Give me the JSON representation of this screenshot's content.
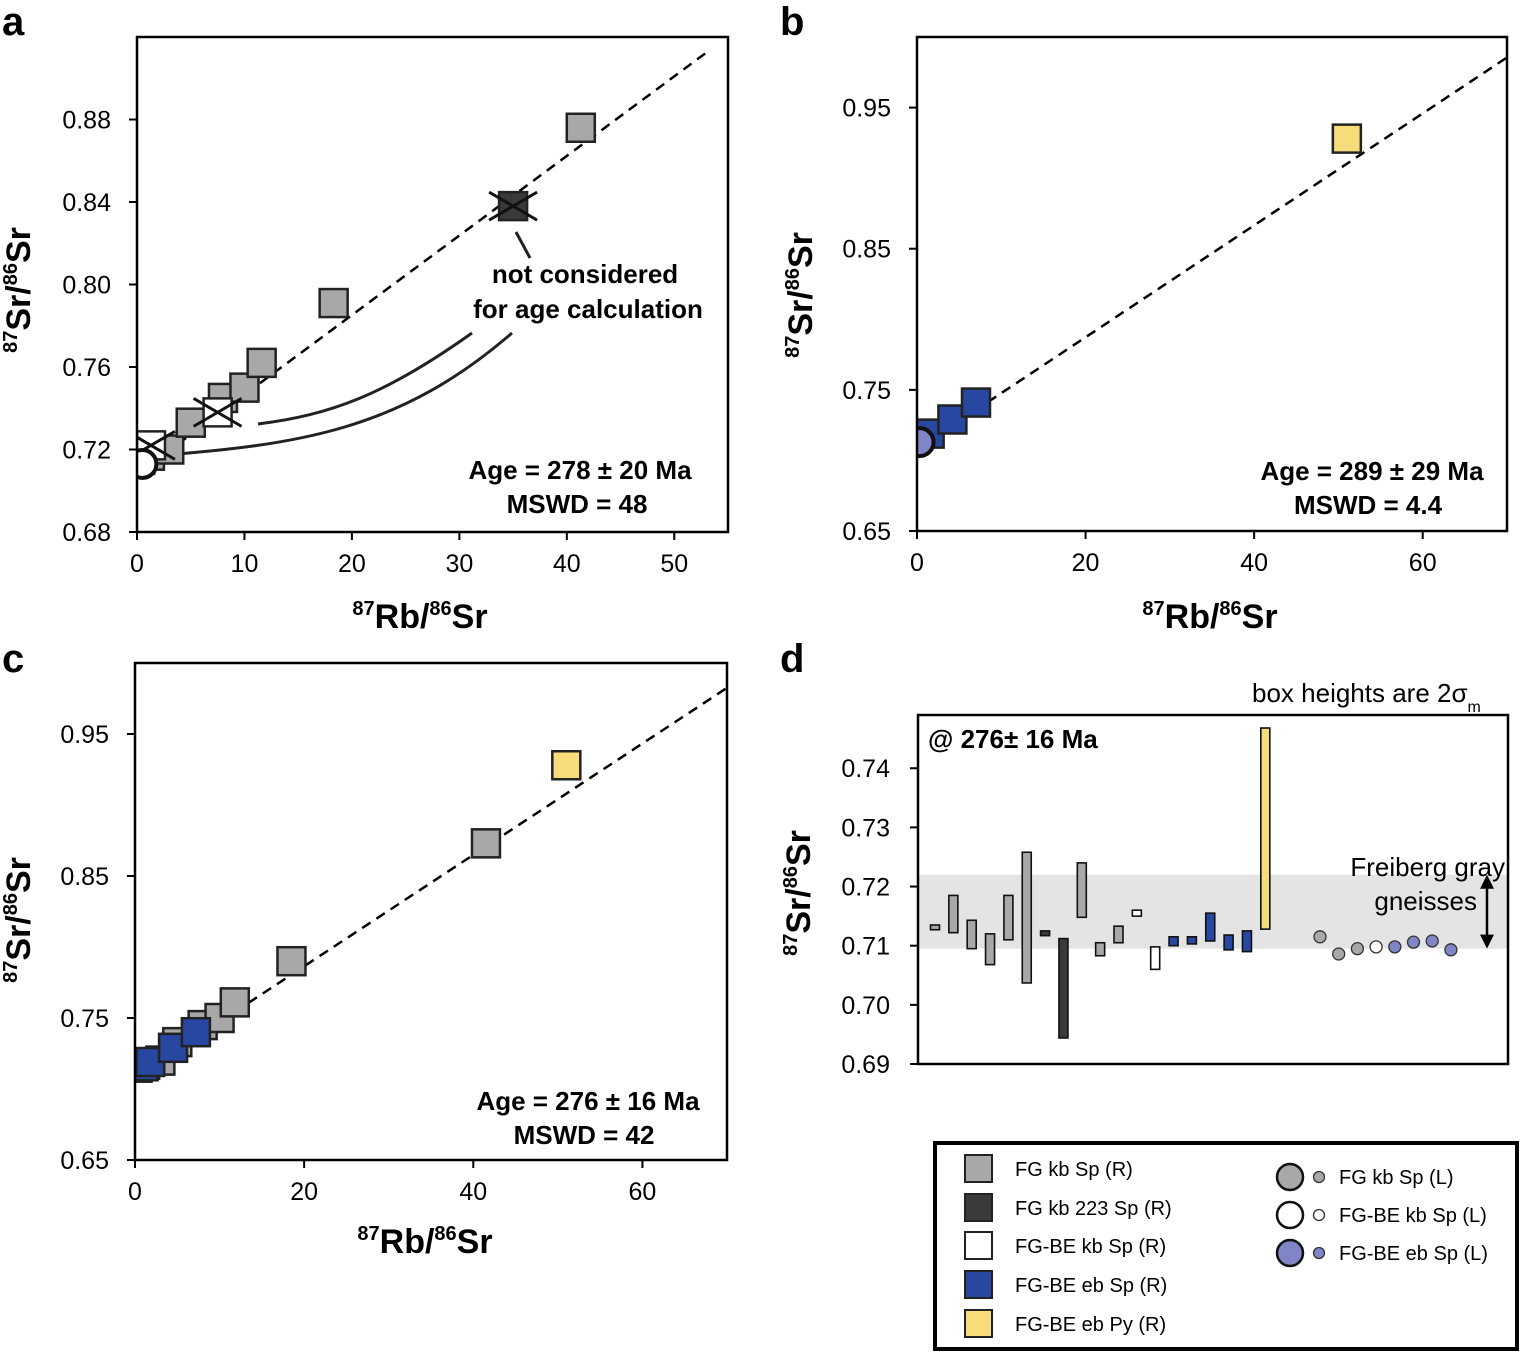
{
  "colors": {
    "fg_kb_sp_r": "#a8a8a8",
    "fg_kb_223_sp_r": "#3a3a3a",
    "fgbe_kb_sp_r": "#ffffff",
    "fgbe_eb_sp_r": "#2747a0",
    "fgbe_eb_py_r": "#f6dc7a",
    "fg_kb_sp_l": "#a8a8a8",
    "fgbe_kb_sp_l": "#ffffff",
    "fgbe_eb_sp_l": "#7f85c7",
    "band": "#e4e4e4"
  },
  "chart_data": [
    {
      "panel": "a",
      "type": "scatter",
      "xlabel": {
        "sup1": "87",
        "base1": "Rb/",
        "sup2": "86",
        "base2": "Sr"
      },
      "ylabel": {
        "sup1": "87",
        "base1": "Sr/",
        "sup2": "86",
        "base2": "Sr"
      },
      "xlim": [
        0,
        55
      ],
      "ylim": [
        0.68,
        0.92
      ],
      "xticks": [
        0,
        10,
        20,
        30,
        40,
        50
      ],
      "yticks": [
        0.68,
        0.72,
        0.76,
        0.8,
        0.84,
        0.88
      ],
      "ytick_labels": [
        "0.68",
        "0.72",
        "0.76",
        "0.80",
        "0.84",
        "0.88"
      ],
      "regression": {
        "x": [
          0,
          53
        ],
        "y": [
          0.708,
          0.9125
        ]
      },
      "points": [
        {
          "x": 0.3,
          "y": 0.715,
          "group": "fg_kb_sp_r"
        },
        {
          "x": 1.2,
          "y": 0.717,
          "group": "fg_kb_sp_r"
        },
        {
          "x": 3.0,
          "y": 0.72,
          "group": "fg_kb_sp_r"
        },
        {
          "x": 5.0,
          "y": 0.733,
          "group": "fg_kb_sp_r"
        },
        {
          "x": 8.0,
          "y": 0.745,
          "group": "fg_kb_sp_r"
        },
        {
          "x": 10.0,
          "y": 0.75,
          "group": "fg_kb_sp_r"
        },
        {
          "x": 11.6,
          "y": 0.762,
          "group": "fg_kb_sp_r"
        },
        {
          "x": 18.3,
          "y": 0.791,
          "group": "fg_kb_sp_r"
        },
        {
          "x": 41.3,
          "y": 0.876,
          "group": "fg_kb_sp_r"
        },
        {
          "x": 35.0,
          "y": 0.838,
          "group": "fg_kb_223_sp_r",
          "excluded": true
        },
        {
          "x": 7.5,
          "y": 0.738,
          "group": "fgbe_kb_sp_r",
          "excluded": true
        },
        {
          "x": 1.3,
          "y": 0.722,
          "group": "fgbe_kb_sp_r",
          "excluded": true
        },
        {
          "x": 0.5,
          "y": 0.713,
          "group": "fgbe_kb_sp_l"
        }
      ],
      "annotation": {
        "line1": "not considered",
        "line2": "for age calculation"
      },
      "age_text": "Age = 278 ± 20 Ma",
      "mswd_text": "MSWD = 48"
    },
    {
      "panel": "b",
      "type": "scatter",
      "xlabel": {
        "sup1": "87",
        "base1": "Rb/",
        "sup2": "86",
        "base2": "Sr"
      },
      "ylabel": {
        "sup1": "87",
        "base1": "Sr/",
        "sup2": "86",
        "base2": "Sr"
      },
      "xlim": [
        0,
        70
      ],
      "ylim": [
        0.65,
        1.0
      ],
      "xticks": [
        0,
        20,
        40,
        60
      ],
      "yticks": [
        0.65,
        0.75,
        0.85,
        0.95
      ],
      "ytick_labels": [
        "0.65",
        "0.75",
        "0.85",
        "0.95"
      ],
      "regression": {
        "x": [
          0,
          70
        ],
        "y": [
          0.708,
          0.9855
        ]
      },
      "points": [
        {
          "x": 1.5,
          "y": 0.719,
          "group": "fgbe_eb_sp_r"
        },
        {
          "x": 4.2,
          "y": 0.729,
          "group": "fgbe_eb_sp_r"
        },
        {
          "x": 7.0,
          "y": 0.741,
          "group": "fgbe_eb_sp_r"
        },
        {
          "x": 51.0,
          "y": 0.928,
          "group": "fgbe_eb_py_r"
        },
        {
          "x": 0.3,
          "y": 0.713,
          "group": "fgbe_eb_sp_l"
        }
      ],
      "age_text": "Age = 289 ± 29 Ma",
      "mswd_text": "MSWD = 4.4"
    },
    {
      "panel": "c",
      "type": "scatter",
      "xlabel": {
        "sup1": "87",
        "base1": "Rb/",
        "sup2": "86",
        "base2": "Sr"
      },
      "ylabel": {
        "sup1": "87",
        "base1": "Sr/",
        "sup2": "86",
        "base2": "Sr"
      },
      "xlim": [
        0,
        70
      ],
      "ylim": [
        0.65,
        1.0
      ],
      "xticks": [
        0,
        20,
        40,
        60
      ],
      "yticks": [
        0.65,
        0.75,
        0.85,
        0.95
      ],
      "ytick_labels": [
        "0.65",
        "0.75",
        "0.85",
        "0.95"
      ],
      "regression": {
        "x": [
          0,
          70
        ],
        "y": [
          0.708,
          0.9825
        ]
      },
      "points": [
        {
          "x": 0.3,
          "y": 0.715,
          "group": "fg_kb_sp_r"
        },
        {
          "x": 1.2,
          "y": 0.717,
          "group": "fg_kb_sp_r"
        },
        {
          "x": 3.0,
          "y": 0.72,
          "group": "fg_kb_sp_r"
        },
        {
          "x": 5.0,
          "y": 0.733,
          "group": "fg_kb_sp_r"
        },
        {
          "x": 8.0,
          "y": 0.745,
          "group": "fg_kb_sp_r"
        },
        {
          "x": 10.0,
          "y": 0.75,
          "group": "fg_kb_sp_r"
        },
        {
          "x": 11.8,
          "y": 0.761,
          "group": "fg_kb_sp_r"
        },
        {
          "x": 18.5,
          "y": 0.79,
          "group": "fg_kb_sp_r"
        },
        {
          "x": 41.5,
          "y": 0.873,
          "group": "fg_kb_sp_r"
        },
        {
          "x": 1.0,
          "y": 0.716,
          "group": "fgbe_eb_sp_r"
        },
        {
          "x": 1.8,
          "y": 0.719,
          "group": "fgbe_eb_sp_r"
        },
        {
          "x": 4.5,
          "y": 0.729,
          "group": "fgbe_eb_sp_r"
        },
        {
          "x": 7.2,
          "y": 0.74,
          "group": "fgbe_eb_sp_r"
        },
        {
          "x": 51.0,
          "y": 0.928,
          "group": "fgbe_eb_py_r"
        }
      ],
      "age_text": "Age = 276 ± 16 Ma",
      "mswd_text": "MSWD = 42"
    },
    {
      "panel": "d",
      "type": "box-error-plot",
      "ylabel": {
        "sup1": "87",
        "base1": "Sr/",
        "sup2": "86",
        "base2": "Sr"
      },
      "ylim": [
        0.69,
        0.749
      ],
      "yticks": [
        0.69,
        0.7,
        0.71,
        0.72,
        0.73,
        0.74
      ],
      "ytick_labels": [
        "0.69",
        "0.70",
        "0.71",
        "0.72",
        "0.73",
        "0.74"
      ],
      "note": {
        "text": "box heights are 2σ",
        "sub": "m"
      },
      "inner_label": "@ 276± 16 Ma",
      "band": {
        "y0": 0.7095,
        "y1": 0.722,
        "label1": "Freiberg gray",
        "label2": "gneisses"
      },
      "boxes": [
        {
          "i": 0,
          "y0": 0.7127,
          "y1": 0.7135,
          "group": "fg_kb_sp_r"
        },
        {
          "i": 1,
          "y0": 0.7122,
          "y1": 0.7185,
          "group": "fg_kb_sp_r"
        },
        {
          "i": 2,
          "y0": 0.7095,
          "y1": 0.7143,
          "group": "fg_kb_sp_r"
        },
        {
          "i": 3,
          "y0": 0.7068,
          "y1": 0.712,
          "group": "fg_kb_sp_r"
        },
        {
          "i": 4,
          "y0": 0.711,
          "y1": 0.7185,
          "group": "fg_kb_sp_r"
        },
        {
          "i": 5,
          "y0": 0.7037,
          "y1": 0.7258,
          "group": "fg_kb_sp_r"
        },
        {
          "i": 6,
          "y0": 0.7117,
          "y1": 0.7125,
          "group": "fg_kb_223_sp_r"
        },
        {
          "i": 7,
          "y0": 0.6944,
          "y1": 0.7112,
          "group": "fg_kb_223_sp_r"
        },
        {
          "i": 8,
          "y0": 0.7148,
          "y1": 0.724,
          "group": "fg_kb_sp_r"
        },
        {
          "i": 9,
          "y0": 0.7083,
          "y1": 0.7105,
          "group": "fg_kb_sp_r"
        },
        {
          "i": 10,
          "y0": 0.7105,
          "y1": 0.7133,
          "group": "fg_kb_sp_r"
        },
        {
          "i": 11,
          "y0": 0.715,
          "y1": 0.716,
          "group": "fgbe_kb_sp_r"
        },
        {
          "i": 12,
          "y0": 0.706,
          "y1": 0.7098,
          "group": "fgbe_kb_sp_r"
        },
        {
          "i": 13,
          "y0": 0.71,
          "y1": 0.7115,
          "group": "fgbe_eb_sp_r"
        },
        {
          "i": 14,
          "y0": 0.7103,
          "y1": 0.7115,
          "group": "fgbe_eb_sp_r"
        },
        {
          "i": 15,
          "y0": 0.7108,
          "y1": 0.7155,
          "group": "fgbe_eb_sp_r"
        },
        {
          "i": 16,
          "y0": 0.7093,
          "y1": 0.7118,
          "group": "fgbe_eb_sp_r"
        },
        {
          "i": 17,
          "y0": 0.709,
          "y1": 0.7125,
          "group": "fgbe_eb_sp_r"
        },
        {
          "i": 18,
          "y0": 0.7128,
          "y1": 0.7468,
          "group": "fgbe_eb_py_r"
        }
      ],
      "dots": [
        {
          "i": 0,
          "y": 0.7115,
          "group": "fg_kb_sp_l"
        },
        {
          "i": 1,
          "y": 0.7086,
          "group": "fg_kb_sp_l"
        },
        {
          "i": 2,
          "y": 0.7095,
          "group": "fg_kb_sp_l"
        },
        {
          "i": 3,
          "y": 0.7098,
          "group": "fgbe_kb_sp_l"
        },
        {
          "i": 4,
          "y": 0.7098,
          "group": "fgbe_eb_sp_l"
        },
        {
          "i": 5,
          "y": 0.7106,
          "group": "fgbe_eb_sp_l"
        },
        {
          "i": 6,
          "y": 0.7108,
          "group": "fgbe_eb_sp_l"
        },
        {
          "i": 7,
          "y": 0.7093,
          "group": "fgbe_eb_sp_l"
        }
      ]
    }
  ],
  "panel_labels": {
    "a": "a",
    "b": "b",
    "c": "c",
    "d": "d"
  },
  "legend": {
    "squares": [
      {
        "label": "FG kb Sp (R)",
        "group": "fg_kb_sp_r"
      },
      {
        "label": "FG kb 223 Sp (R)",
        "group": "fg_kb_223_sp_r"
      },
      {
        "label": "FG-BE kb Sp (R)",
        "group": "fgbe_kb_sp_r"
      },
      {
        "label": "FG-BE eb Sp (R)",
        "group": "fgbe_eb_sp_r"
      },
      {
        "label": "FG-BE eb Py (R)",
        "group": "fgbe_eb_py_r"
      }
    ],
    "circles": [
      {
        "label": "FG kb Sp (L)",
        "group": "fg_kb_sp_l"
      },
      {
        "label": "FG-BE kb Sp (L)",
        "group": "fgbe_kb_sp_l"
      },
      {
        "label": "FG-BE eb Sp (L)",
        "group": "fgbe_eb_sp_l"
      }
    ]
  }
}
